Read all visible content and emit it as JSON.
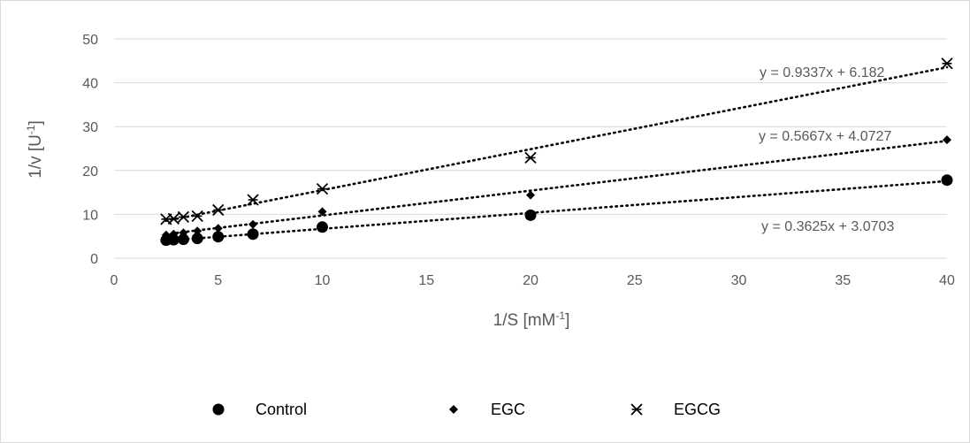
{
  "chart_data": {
    "type": "scatter",
    "title": "",
    "xlabel": "1/S [mM",
    "xlabel_sup": "-1",
    "xlabel_end": "]",
    "ylabel": "1/v [U",
    "ylabel_sup": "-1",
    "ylabel_end": "]",
    "xlim": [
      0,
      40
    ],
    "ylim": [
      0,
      50
    ],
    "x_ticks": [
      0,
      5,
      10,
      15,
      20,
      25,
      30,
      35,
      40
    ],
    "y_ticks": [
      0,
      10,
      20,
      30,
      40,
      50
    ],
    "grid": "horizontal",
    "legend_position": "bottom",
    "series": [
      {
        "name": "Control",
        "marker": "circle",
        "color": "#000000",
        "points": [
          [
            2.5,
            4.1
          ],
          [
            2.86,
            4.2
          ],
          [
            3.33,
            4.3
          ],
          [
            4.0,
            4.5
          ],
          [
            5.0,
            4.9
          ],
          [
            6.67,
            5.5
          ],
          [
            10.0,
            7.1
          ],
          [
            20.0,
            9.8
          ],
          [
            40.0,
            17.8
          ]
        ],
        "trendline": {
          "slope": 0.3625,
          "intercept": 3.0703,
          "label": "y = 0.3625x + 3.0703"
        }
      },
      {
        "name": "EGC",
        "marker": "diamond",
        "color": "#000000",
        "points": [
          [
            2.5,
            5.3
          ],
          [
            2.86,
            5.5
          ],
          [
            3.33,
            5.8
          ],
          [
            4.0,
            6.2
          ],
          [
            5.0,
            6.8
          ],
          [
            6.67,
            7.7
          ],
          [
            10.0,
            10.6
          ],
          [
            20.0,
            14.4
          ],
          [
            40.0,
            27.0
          ]
        ],
        "trendline": {
          "slope": 0.5667,
          "intercept": 4.0727,
          "label": "y = 0.5667x + 4.0727"
        }
      },
      {
        "name": "EGCG",
        "marker": "star",
        "color": "#000000",
        "points": [
          [
            2.5,
            8.9
          ],
          [
            2.86,
            9.0
          ],
          [
            3.33,
            9.4
          ],
          [
            4.0,
            9.6
          ],
          [
            5.0,
            11.0
          ],
          [
            6.67,
            13.3
          ],
          [
            10.0,
            15.8
          ],
          [
            20.0,
            22.9
          ],
          [
            40.0,
            44.4
          ]
        ],
        "trendline": {
          "slope": 0.9337,
          "intercept": 6.182,
          "label": "y = 0.9337x + 6.182"
        }
      }
    ]
  },
  "colors": {
    "axis": "#d9d9d9",
    "grid": "#d9d9d9",
    "text": "#595959",
    "marker": "#000000"
  }
}
